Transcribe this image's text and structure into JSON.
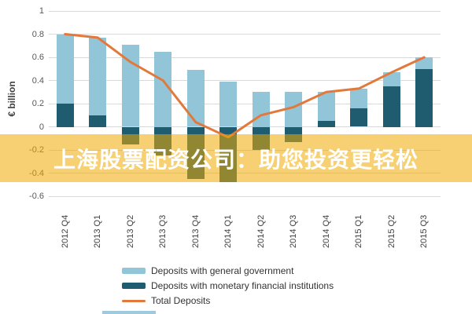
{
  "banner": {
    "text": "上海股票配资公司：助您投资更轻松",
    "overlay_color": "rgba(238,170,0,0.55)",
    "text_color": "#ffffff"
  },
  "chart_data": {
    "type": "bar",
    "subtype": "stacked-bars-with-total-line",
    "categories": [
      "2012 Q4",
      "2013 Q1",
      "2013 Q2",
      "2013 Q3",
      "2013 Q4",
      "2014 Q1",
      "2014 Q2",
      "2014 Q3",
      "2014 Q4",
      "2015 Q1",
      "2015 Q2",
      "2015 Q3"
    ],
    "series": [
      {
        "name": "Deposits with general government",
        "type": "bar",
        "color": "#92c5d8",
        "values": [
          0.6,
          0.67,
          0.71,
          0.65,
          0.49,
          0.39,
          0.3,
          0.3,
          0.25,
          0.17,
          0.12,
          0.1
        ]
      },
      {
        "name": "Deposits with monetary financial institutions",
        "type": "bar",
        "color": "#1f5c70",
        "values": [
          0.2,
          0.1,
          -0.15,
          -0.25,
          -0.45,
          -0.48,
          -0.2,
          -0.13,
          0.05,
          0.16,
          0.35,
          0.5
        ]
      },
      {
        "name": "Total Deposits",
        "type": "line",
        "color": "#e2793b",
        "values": [
          0.8,
          0.77,
          0.56,
          0.4,
          0.04,
          -0.09,
          0.1,
          0.17,
          0.3,
          0.33,
          0.47,
          0.6
        ]
      }
    ],
    "title": "",
    "xlabel": "",
    "ylabel": "€ billion",
    "ylim": [
      -0.6,
      1.0
    ],
    "yticks": [
      {
        "label": "1",
        "value": 1.0
      },
      {
        "label": "0.8",
        "value": 0.8
      },
      {
        "label": "0.6",
        "value": 0.6
      },
      {
        "label": "0.4",
        "value": 0.4
      },
      {
        "label": "0.2",
        "value": 0.2
      },
      {
        "label": "0",
        "value": 0.0
      },
      {
        "label": "-0.2",
        "value": -0.2
      },
      {
        "label": "-0.4",
        "value": -0.4
      },
      {
        "label": "-0.6",
        "value": -0.6
      }
    ],
    "grid": true,
    "legend_position": "bottom-left"
  },
  "style": {
    "gridline_color": "#d9d9d9",
    "tick_text_color": "#595959",
    "bottom_strip_color": "#9fc9dd"
  }
}
